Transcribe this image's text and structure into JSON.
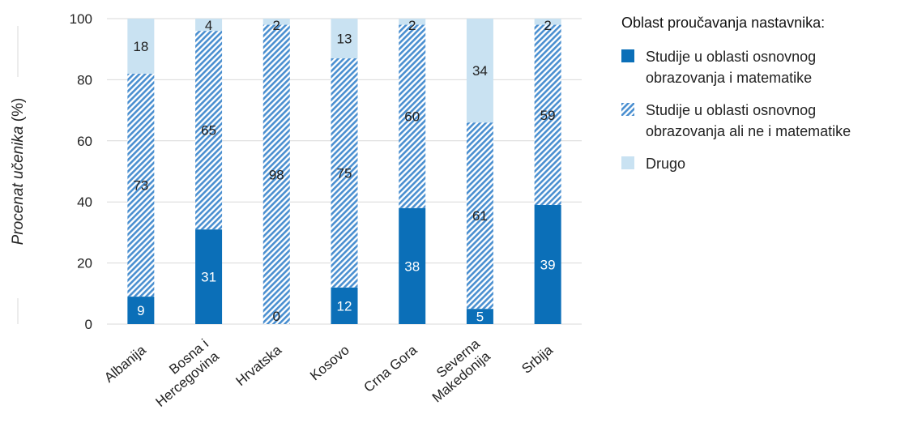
{
  "chart_data": {
    "type": "bar",
    "stacked": true,
    "ylabel": "Procenat učenika (%)",
    "ylabel_parts": [
      {
        "text": "Procenat učenika",
        "italic": true
      },
      {
        "text": " (%)",
        "italic": false
      }
    ],
    "ylim": [
      0,
      100
    ],
    "yticks": [
      0,
      20,
      40,
      60,
      80,
      100
    ],
    "grid": true,
    "legend_placement": "right",
    "categories": [
      "Albanija",
      "Bosna i Hercegovina",
      "Hrvatska",
      "Kosovo",
      "Crna Gora",
      "Severna Makedonija",
      "Srbija"
    ],
    "category_lines": [
      [
        "Albanija"
      ],
      [
        "Bosna i",
        "Hercegovina"
      ],
      [
        "Hrvatska"
      ],
      [
        "Kosovo"
      ],
      [
        "Crna Gora"
      ],
      [
        "Severna",
        "Makedonija"
      ],
      [
        "Srbija"
      ]
    ],
    "series": [
      {
        "name": "Studije u oblasti osnovnog obrazovanja i matematike",
        "values": [
          9,
          31,
          0,
          12,
          38,
          5,
          39
        ],
        "color": "#0b6fb8",
        "pattern": "solid"
      },
      {
        "name": "Studije u oblasti osnovnog obrazovanja ali ne i matematike",
        "values": [
          73,
          65,
          98,
          75,
          60,
          61,
          59
        ],
        "color": "#4a8fd0",
        "pattern": "hatch"
      },
      {
        "name": "Drugo",
        "values": [
          18,
          4,
          2,
          13,
          2,
          34,
          2
        ],
        "color": "#c9e2f2",
        "pattern": "solid"
      }
    ]
  },
  "legend": {
    "title": "Oblast proučavanja nastavnika:",
    "items": [
      {
        "lines": [
          "Studije u oblasti osnovnog",
          "obrazovanja i matematike"
        ],
        "color": "#0b6fb8",
        "pattern": "solid"
      },
      {
        "lines": [
          "Studije u oblasti osnovnog",
          "obrazovanja ali ne i matematike"
        ],
        "color": "#4a8fd0",
        "pattern": "hatch"
      },
      {
        "lines": [
          "Drugo"
        ],
        "color": "#c9e2f2",
        "pattern": "solid"
      }
    ]
  }
}
